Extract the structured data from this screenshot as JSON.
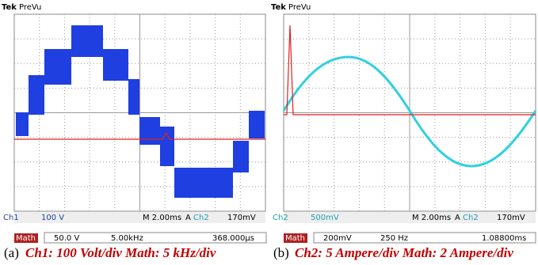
{
  "panels": [
    {
      "scope": {
        "brand": "Tek",
        "mode": "PreVu",
        "channel": "Ch1",
        "scale": "100 V",
        "timebase": "M 2.00ms",
        "trigger_mode": "A",
        "trigger_channel": "Ch2",
        "trigger_level": "170mV"
      },
      "math": {
        "label": "Math",
        "scale": "50.0 V",
        "rate": "5.00kHz",
        "position": "368.000µs"
      },
      "caption": {
        "letter": "(a)",
        "text": "Ch1: 100 Volt/div Math: 5 kHz/div"
      }
    },
    {
      "scope": {
        "brand": "Tek",
        "mode": "PreVu",
        "channel": "Ch2",
        "scale": "500mV",
        "timebase": "M 2.00ms",
        "trigger_mode": "A",
        "trigger_channel": "Ch2",
        "trigger_level": "170mV"
      },
      "math": {
        "label": "Math",
        "scale": "200mV",
        "rate": "250 Hz",
        "position": "1.08800ms"
      },
      "caption": {
        "letter": "(b)",
        "text": "Ch2: 5 Ampere/div Math: 2 Ampere/div"
      }
    }
  ]
}
